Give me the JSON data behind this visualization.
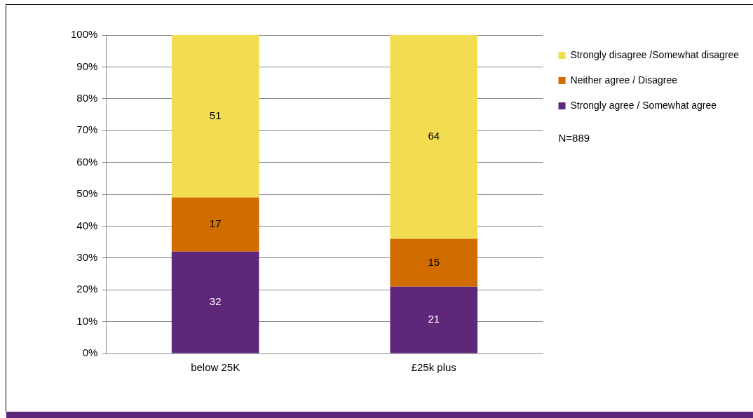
{
  "chart_data": {
    "type": "bar",
    "stacked": true,
    "categories": [
      "below 25K",
      "£25k plus"
    ],
    "series": [
      {
        "name": "Strongly agree / Somewhat agree",
        "color": "#5f277a",
        "values": [
          32,
          21
        ]
      },
      {
        "name": "Neither agree / Disagree",
        "color": "#d06c00",
        "values": [
          17,
          15
        ]
      },
      {
        "name": "Strongly disagree /Somewhat disagree",
        "color": "#f2dc50",
        "values": [
          51,
          64
        ]
      }
    ],
    "ylim": [
      0,
      100
    ],
    "yticks": [
      {
        "value": 0,
        "label": "0%"
      },
      {
        "value": 10,
        "label": "10%"
      },
      {
        "value": 20,
        "label": "20%"
      },
      {
        "value": 30,
        "label": "30%"
      },
      {
        "value": 40,
        "label": "40%"
      },
      {
        "value": 50,
        "label": "50%"
      },
      {
        "value": 60,
        "label": "60%"
      },
      {
        "value": 70,
        "label": "70%"
      },
      {
        "value": 80,
        "label": "80%"
      },
      {
        "value": 90,
        "label": "90%"
      },
      {
        "value": 100,
        "label": "100%"
      }
    ],
    "grid": "y",
    "legend": "right",
    "data_labels": true,
    "annotations": [
      "N=889"
    ]
  }
}
